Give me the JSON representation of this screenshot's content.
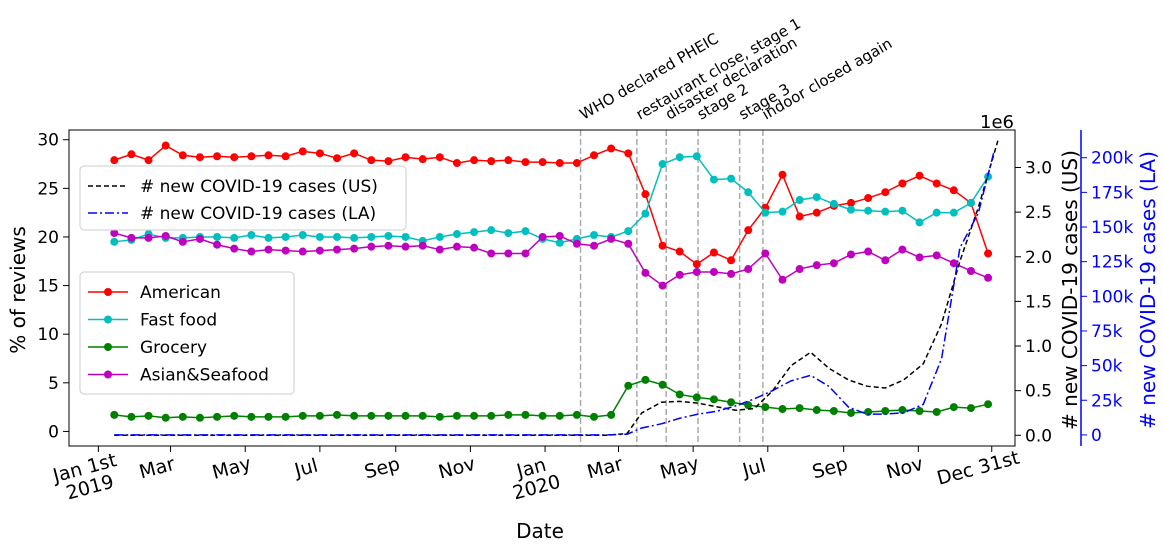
{
  "chart_data": {
    "type": "line",
    "xlabel": "Date",
    "ylabel_left": "% of reviews",
    "ylabel_right_us": "# new COVID-19 cases (US)",
    "ylabel_right_la": "# new COVID-19 cases (LA)",
    "right_us_multiplier": "1e6",
    "x_ticks": [
      {
        "value": "2019-01-01",
        "label": "Jan 1st\n2019"
      },
      {
        "value": "2019-03-01",
        "label": "Mar"
      },
      {
        "value": "2019-05-01",
        "label": "May"
      },
      {
        "value": "2019-07-01",
        "label": "Jul"
      },
      {
        "value": "2019-09-01",
        "label": "Sep"
      },
      {
        "value": "2019-11-01",
        "label": "Nov"
      },
      {
        "value": "2020-01-01",
        "label": "Jan\n2020"
      },
      {
        "value": "2020-03-01",
        "label": "Mar"
      },
      {
        "value": "2020-05-01",
        "label": "May"
      },
      {
        "value": "2020-07-01",
        "label": "Jul"
      },
      {
        "value": "2020-09-01",
        "label": "Sep"
      },
      {
        "value": "2020-11-01",
        "label": "Nov"
      },
      {
        "value": "2020-12-31",
        "label": "Dec 31st"
      }
    ],
    "xlim": [
      "2018-12-08",
      "2021-01-19"
    ],
    "ylim_left": [
      -1.5,
      31
    ],
    "yticks_left": [
      0,
      5,
      10,
      15,
      20,
      25,
      30
    ],
    "ylim_right_us": [
      -0.12,
      3.42
    ],
    "yticks_right_us": [
      "0.0",
      "0.5",
      "1.0",
      "1.5",
      "2.0",
      "2.5",
      "3.0"
    ],
    "ylim_right_la": [
      -8000,
      220000
    ],
    "yticks_right_la": [
      {
        "value": 0,
        "label": "0"
      },
      {
        "value": 25000,
        "label": "25k"
      },
      {
        "value": 50000,
        "label": "50k"
      },
      {
        "value": 75000,
        "label": "75k"
      },
      {
        "value": 100000,
        "label": "100k"
      },
      {
        "value": 125000,
        "label": "125k"
      },
      {
        "value": 150000,
        "label": "150k"
      },
      {
        "value": 175000,
        "label": "175k"
      },
      {
        "value": 200000,
        "label": "200k"
      }
    ],
    "events": [
      {
        "date": "2020-01-30",
        "label": "WHO declared PHEIC"
      },
      {
        "date": "2020-03-16",
        "label": "restaurant close, stage 1"
      },
      {
        "date": "2020-04-09",
        "label": "disaster declaration"
      },
      {
        "date": "2020-05-05",
        "label": "stage 2"
      },
      {
        "date": "2020-06-08",
        "label": "stage 3"
      },
      {
        "date": "2020-06-27",
        "label": "indoor closed again"
      }
    ],
    "series": [
      {
        "name": "American",
        "color": "#ff0000",
        "axis": "left",
        "marker": "circle",
        "x": [
          "2019-01-14",
          "2019-01-28",
          "2019-02-11",
          "2019-02-25",
          "2019-03-11",
          "2019-03-25",
          "2019-04-08",
          "2019-04-22",
          "2019-05-06",
          "2019-05-20",
          "2019-06-03",
          "2019-06-17",
          "2019-07-01",
          "2019-07-15",
          "2019-07-29",
          "2019-08-12",
          "2019-08-26",
          "2019-09-09",
          "2019-09-23",
          "2019-10-07",
          "2019-10-21",
          "2019-11-04",
          "2019-11-18",
          "2019-12-02",
          "2019-12-16",
          "2019-12-30",
          "2020-01-13",
          "2020-01-27",
          "2020-02-10",
          "2020-02-24",
          "2020-03-09",
          "2020-03-23",
          "2020-04-06",
          "2020-04-20",
          "2020-05-04",
          "2020-05-18",
          "2020-06-01",
          "2020-06-15",
          "2020-06-29",
          "2020-07-13",
          "2020-07-27",
          "2020-08-10",
          "2020-08-24",
          "2020-09-07",
          "2020-09-21",
          "2020-10-05",
          "2020-10-19",
          "2020-11-02",
          "2020-11-16",
          "2020-11-30",
          "2020-12-14",
          "2020-12-28"
        ],
        "values": [
          27.9,
          28.5,
          27.9,
          29.4,
          28.4,
          28.2,
          28.3,
          28.2,
          28.3,
          28.4,
          28.3,
          28.8,
          28.6,
          28.1,
          28.6,
          27.9,
          27.8,
          28.2,
          28.0,
          28.2,
          27.6,
          27.9,
          27.8,
          27.9,
          27.7,
          27.7,
          27.6,
          27.6,
          28.4,
          29.1,
          28.6,
          24.4,
          19.1,
          18.5,
          17.2,
          18.4,
          17.6,
          20.7,
          23.0,
          26.4,
          22.1,
          22.5,
          23.2,
          23.5,
          24.0,
          24.6,
          25.5,
          26.3,
          25.5,
          24.8,
          23.5,
          18.3
        ]
      },
      {
        "name": "Fast food",
        "color": "#00bfbf",
        "axis": "left",
        "marker": "circle",
        "x": [
          "2019-01-14",
          "2019-01-28",
          "2019-02-11",
          "2019-02-25",
          "2019-03-11",
          "2019-03-25",
          "2019-04-08",
          "2019-04-22",
          "2019-05-06",
          "2019-05-20",
          "2019-06-03",
          "2019-06-17",
          "2019-07-01",
          "2019-07-15",
          "2019-07-29",
          "2019-08-12",
          "2019-08-26",
          "2019-09-09",
          "2019-09-23",
          "2019-10-07",
          "2019-10-21",
          "2019-11-04",
          "2019-11-18",
          "2019-12-02",
          "2019-12-16",
          "2019-12-30",
          "2020-01-13",
          "2020-01-27",
          "2020-02-10",
          "2020-02-24",
          "2020-03-09",
          "2020-03-23",
          "2020-04-06",
          "2020-04-20",
          "2020-05-04",
          "2020-05-18",
          "2020-06-01",
          "2020-06-15",
          "2020-06-29",
          "2020-07-13",
          "2020-07-27",
          "2020-08-10",
          "2020-08-24",
          "2020-09-07",
          "2020-09-21",
          "2020-10-05",
          "2020-10-19",
          "2020-11-02",
          "2020-11-16",
          "2020-11-30",
          "2020-12-14",
          "2020-12-28"
        ],
        "values": [
          19.5,
          19.7,
          20.3,
          19.9,
          19.9,
          20.0,
          20.0,
          19.9,
          20.2,
          19.9,
          20.0,
          20.2,
          20.0,
          20.0,
          19.9,
          20.0,
          20.1,
          20.0,
          19.6,
          20.0,
          20.3,
          20.5,
          20.7,
          20.4,
          20.6,
          19.8,
          19.4,
          19.8,
          20.2,
          20.0,
          20.6,
          22.4,
          27.5,
          28.2,
          28.3,
          25.9,
          26.0,
          24.6,
          22.5,
          22.6,
          23.8,
          24.1,
          23.4,
          22.8,
          22.7,
          22.6,
          22.7,
          21.5,
          22.5,
          22.5,
          23.5,
          26.2
        ]
      },
      {
        "name": "Grocery",
        "color": "#008000",
        "axis": "left",
        "marker": "circle",
        "x": [
          "2019-01-14",
          "2019-01-28",
          "2019-02-11",
          "2019-02-25",
          "2019-03-11",
          "2019-03-25",
          "2019-04-08",
          "2019-04-22",
          "2019-05-06",
          "2019-05-20",
          "2019-06-03",
          "2019-06-17",
          "2019-07-01",
          "2019-07-15",
          "2019-07-29",
          "2019-08-12",
          "2019-08-26",
          "2019-09-09",
          "2019-09-23",
          "2019-10-07",
          "2019-10-21",
          "2019-11-04",
          "2019-11-18",
          "2019-12-02",
          "2019-12-16",
          "2019-12-30",
          "2020-01-13",
          "2020-01-27",
          "2020-02-10",
          "2020-02-24",
          "2020-03-09",
          "2020-03-23",
          "2020-04-06",
          "2020-04-20",
          "2020-05-04",
          "2020-05-18",
          "2020-06-01",
          "2020-06-15",
          "2020-06-29",
          "2020-07-13",
          "2020-07-27",
          "2020-08-10",
          "2020-08-24",
          "2020-09-07",
          "2020-09-21",
          "2020-10-05",
          "2020-10-19",
          "2020-11-02",
          "2020-11-16",
          "2020-11-30",
          "2020-12-14",
          "2020-12-28"
        ],
        "values": [
          1.7,
          1.5,
          1.6,
          1.4,
          1.5,
          1.4,
          1.5,
          1.6,
          1.5,
          1.5,
          1.5,
          1.6,
          1.6,
          1.7,
          1.6,
          1.6,
          1.6,
          1.6,
          1.6,
          1.5,
          1.6,
          1.6,
          1.6,
          1.7,
          1.7,
          1.6,
          1.6,
          1.7,
          1.5,
          1.7,
          4.7,
          5.3,
          4.8,
          3.8,
          3.5,
          3.3,
          3.0,
          2.7,
          2.5,
          2.3,
          2.4,
          2.2,
          2.1,
          1.9,
          2.0,
          2.1,
          2.2,
          2.1,
          2.0,
          2.5,
          2.4,
          2.8
        ]
      },
      {
        "name": "Asian&Seafood",
        "color": "#bf00bf",
        "axis": "left",
        "marker": "circle",
        "x": [
          "2019-01-14",
          "2019-01-28",
          "2019-02-11",
          "2019-02-25",
          "2019-03-11",
          "2019-03-25",
          "2019-04-08",
          "2019-04-22",
          "2019-05-06",
          "2019-05-20",
          "2019-06-03",
          "2019-06-17",
          "2019-07-01",
          "2019-07-15",
          "2019-07-29",
          "2019-08-12",
          "2019-08-26",
          "2019-09-09",
          "2019-09-23",
          "2019-10-07",
          "2019-10-21",
          "2019-11-04",
          "2019-11-18",
          "2019-12-02",
          "2019-12-16",
          "2019-12-30",
          "2020-01-13",
          "2020-01-27",
          "2020-02-10",
          "2020-02-24",
          "2020-03-09",
          "2020-03-23",
          "2020-04-06",
          "2020-04-20",
          "2020-05-04",
          "2020-05-18",
          "2020-06-01",
          "2020-06-15",
          "2020-06-29",
          "2020-07-13",
          "2020-07-27",
          "2020-08-10",
          "2020-08-24",
          "2020-09-07",
          "2020-09-21",
          "2020-10-05",
          "2020-10-19",
          "2020-11-02",
          "2020-11-16",
          "2020-11-30",
          "2020-12-14",
          "2020-12-28"
        ],
        "values": [
          20.4,
          19.9,
          19.9,
          20.1,
          19.5,
          19.8,
          19.2,
          18.8,
          18.5,
          18.7,
          18.6,
          18.5,
          18.6,
          18.7,
          18.8,
          19.0,
          19.1,
          19.0,
          19.1,
          18.7,
          19.0,
          18.9,
          18.3,
          18.3,
          18.3,
          20.0,
          20.1,
          19.3,
          19.1,
          19.8,
          19.3,
          16.3,
          15.0,
          16.1,
          16.4,
          16.4,
          16.2,
          16.7,
          18.3,
          15.6,
          16.7,
          17.1,
          17.3,
          18.2,
          18.5,
          17.6,
          18.7,
          17.9,
          18.1,
          17.3,
          16.5,
          15.8
        ]
      },
      {
        "name": "# new COVID-19 cases (US)",
        "color": "#000000",
        "axis": "right_us",
        "style": "dashed",
        "x": [
          "2019-01-14",
          "2020-02-20",
          "2020-03-08",
          "2020-03-20",
          "2020-04-05",
          "2020-04-20",
          "2020-05-05",
          "2020-05-20",
          "2020-06-05",
          "2020-06-20",
          "2020-07-05",
          "2020-07-20",
          "2020-08-05",
          "2020-08-20",
          "2020-09-05",
          "2020-09-20",
          "2020-10-05",
          "2020-10-20",
          "2020-11-05",
          "2020-11-20",
          "2020-12-05",
          "2020-12-20",
          "2021-01-05"
        ],
        "values": [
          0,
          0,
          0.02,
          0.25,
          0.37,
          0.38,
          0.36,
          0.32,
          0.28,
          0.3,
          0.5,
          0.78,
          0.93,
          0.75,
          0.62,
          0.55,
          0.53,
          0.62,
          0.8,
          1.25,
          1.95,
          2.55,
          3.3
        ]
      },
      {
        "name": "# new COVID-19 cases (LA)",
        "color": "#0000ff",
        "axis": "right_la",
        "style": "dashdot",
        "x": [
          "2019-01-14",
          "2020-02-20",
          "2020-03-08",
          "2020-03-20",
          "2020-04-05",
          "2020-04-20",
          "2020-05-05",
          "2020-05-20",
          "2020-06-05",
          "2020-06-20",
          "2020-07-05",
          "2020-07-20",
          "2020-08-05",
          "2020-08-20",
          "2020-09-05",
          "2020-09-20",
          "2020-10-05",
          "2020-10-20",
          "2020-11-05",
          "2020-11-20",
          "2020-12-05",
          "2020-12-20",
          "2021-01-02"
        ],
        "values": [
          0,
          0,
          500,
          5000,
          8000,
          12000,
          15000,
          17000,
          21000,
          26000,
          32000,
          39000,
          43000,
          35000,
          20000,
          15000,
          15000,
          16000,
          22000,
          55000,
          135000,
          160000,
          205000
        ]
      }
    ],
    "legends": [
      {
        "entries": [
          "# new COVID-19 cases (US)",
          "# new COVID-19 cases (LA)"
        ],
        "location": "upper-left"
      },
      {
        "entries": [
          "American",
          "Fast food",
          "Grocery",
          "Asian&Seafood"
        ],
        "location": "center-left"
      }
    ]
  }
}
